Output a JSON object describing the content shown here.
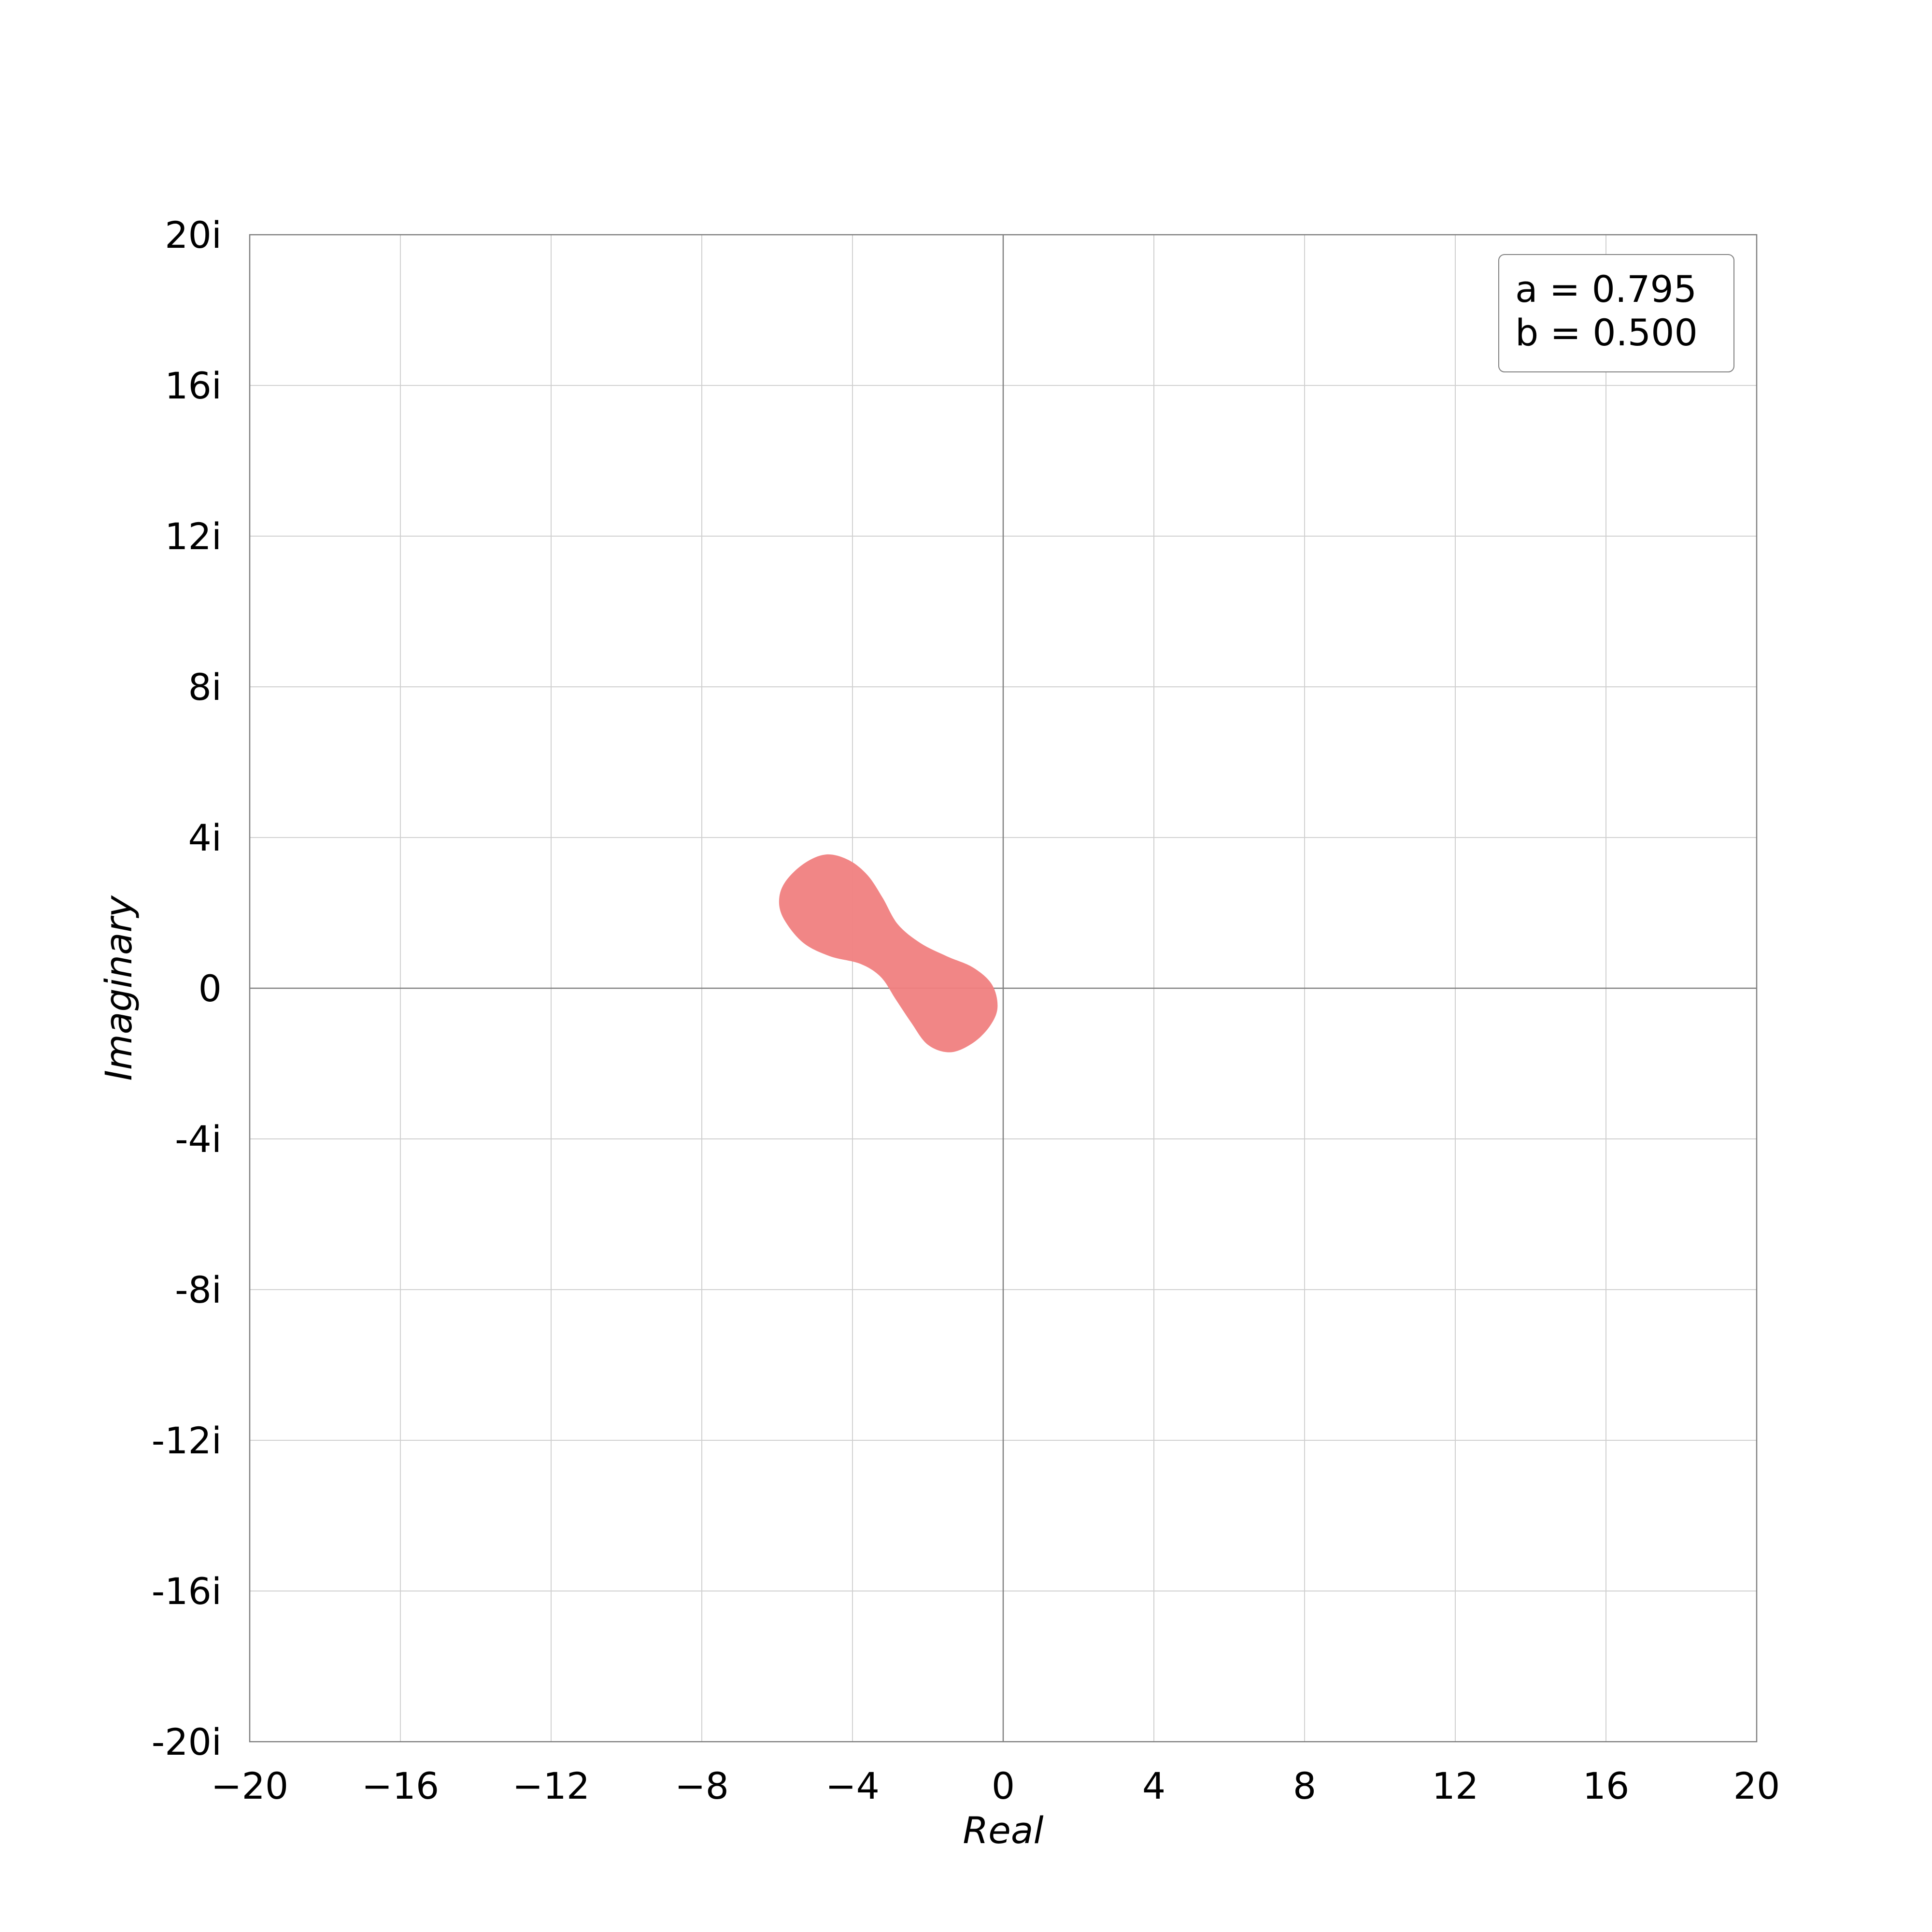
{
  "chart_data": {
    "type": "area",
    "xlabel": "Real",
    "ylabel": "Imaginary",
    "xlim": [
      -20,
      20
    ],
    "ylim": [
      -20,
      20
    ],
    "grid": true,
    "x_ticks": [
      -20,
      -16,
      -12,
      -8,
      -4,
      0,
      4,
      8,
      12,
      16,
      20
    ],
    "x_tick_labels": [
      "−20",
      "−16",
      "−12",
      "−8",
      "−4",
      "0",
      "4",
      "8",
      "12",
      "16",
      "20"
    ],
    "y_ticks": [
      20,
      16,
      12,
      8,
      4,
      0,
      -4,
      -8,
      -12,
      -16,
      -20
    ],
    "y_tick_labels": [
      "20i",
      "16i",
      "12i",
      "8i",
      "4i",
      "0",
      "-4i",
      "-8i",
      "-12i",
      "-16i",
      "-20i"
    ],
    "legend": {
      "placement": "top-right",
      "lines": [
        "a = 0.795",
        "b = 0.500"
      ]
    },
    "region": {
      "color": "#f08080",
      "boundary": [
        [
          -0.15,
          -0.5
        ],
        [
          -0.3,
          0.1
        ],
        [
          -0.8,
          0.55
        ],
        [
          -1.5,
          0.85
        ],
        [
          -2.2,
          1.2
        ],
        [
          -2.8,
          1.7
        ],
        [
          -3.2,
          2.4
        ],
        [
          -3.6,
          3.0
        ],
        [
          -4.1,
          3.4
        ],
        [
          -4.7,
          3.55
        ],
        [
          -5.3,
          3.3
        ],
        [
          -5.8,
          2.8
        ],
        [
          -5.95,
          2.3
        ],
        [
          -5.8,
          1.8
        ],
        [
          -5.3,
          1.2
        ],
        [
          -4.6,
          0.85
        ],
        [
          -3.8,
          0.65
        ],
        [
          -3.25,
          0.3
        ],
        [
          -2.85,
          -0.3
        ],
        [
          -2.45,
          -0.9
        ],
        [
          -2.0,
          -1.5
        ],
        [
          -1.4,
          -1.7
        ],
        [
          -0.8,
          -1.45
        ],
        [
          -0.35,
          -1.0
        ]
      ]
    }
  }
}
